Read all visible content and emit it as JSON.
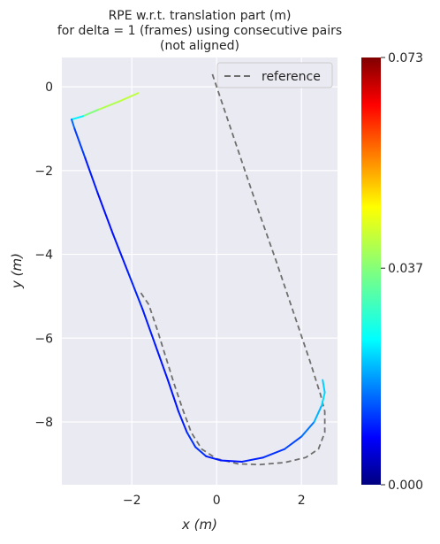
{
  "chart_data": {
    "type": "line",
    "title_lines": [
      "RPE w.r.t. translation part (m)",
      "for delta = 1 (frames) using consecutive pairs",
      "(not aligned)"
    ],
    "xlabel": "x (m)",
    "ylabel": "y (m)",
    "xlim": [
      -3.65,
      2.85
    ],
    "ylim": [
      -9.5,
      0.7
    ],
    "xticks": [
      -2,
      0,
      2
    ],
    "yticks": [
      0,
      -2,
      -4,
      -6,
      -8
    ],
    "xtick_labels": [
      "−2",
      "0",
      "2"
    ],
    "ytick_labels": [
      "0",
      "−2",
      "−4",
      "−6",
      "−8"
    ],
    "grid": true,
    "legend": {
      "placement": "top-right",
      "entries": [
        "reference"
      ]
    },
    "colorbar": {
      "colormap": "jet",
      "min": 0.0,
      "max": 0.073,
      "tick_values": [
        0.0,
        0.037,
        0.073
      ],
      "tick_labels": [
        "0.000",
        "0.037",
        "0.073"
      ]
    },
    "series": [
      {
        "name": "reference",
        "style": "dashed",
        "color": "#6e6e6e",
        "x": [
          -0.1,
          0.2,
          0.6,
          1.0,
          1.4,
          1.8,
          2.2,
          2.45,
          2.55,
          2.55,
          2.4,
          2.1,
          1.6,
          1.0,
          0.5,
          0.0,
          -0.35,
          -0.6,
          -0.8,
          -1.0,
          -1.2,
          -1.4,
          -1.6,
          -1.8
        ],
        "y": [
          0.3,
          -0.6,
          -1.8,
          -3.0,
          -4.15,
          -5.35,
          -6.55,
          -7.35,
          -7.75,
          -8.25,
          -8.65,
          -8.85,
          -8.97,
          -9.02,
          -9.0,
          -8.88,
          -8.65,
          -8.25,
          -7.7,
          -7.1,
          -6.45,
          -5.8,
          -5.2,
          -4.9
        ]
      },
      {
        "name": "estimate",
        "colored_by": "rpe",
        "x": [
          -1.85,
          -2.3,
          -2.8,
          -3.15,
          -3.42,
          -3.35,
          -3.1,
          -2.8,
          -2.45,
          -2.1,
          -1.75,
          -1.45,
          -1.15,
          -0.9,
          -0.7,
          -0.5,
          -0.25,
          0.1,
          0.6,
          1.1,
          1.6,
          2.0,
          2.3,
          2.48,
          2.55,
          2.5
        ],
        "y": [
          -0.15,
          -0.35,
          -0.55,
          -0.7,
          -0.78,
          -1.0,
          -1.7,
          -2.55,
          -3.5,
          -4.4,
          -5.3,
          -6.15,
          -7.0,
          -7.75,
          -8.25,
          -8.6,
          -8.82,
          -8.92,
          -8.95,
          -8.85,
          -8.65,
          -8.35,
          -8.0,
          -7.6,
          -7.3,
          -7.0
        ],
        "rpe": [
          0.04,
          0.042,
          0.038,
          0.035,
          0.018,
          0.015,
          0.012,
          0.01,
          0.01,
          0.011,
          0.012,
          0.01,
          0.011,
          0.01,
          0.012,
          0.013,
          0.012,
          0.01,
          0.011,
          0.012,
          0.013,
          0.015,
          0.02,
          0.024,
          0.026,
          0.022
        ]
      }
    ]
  }
}
